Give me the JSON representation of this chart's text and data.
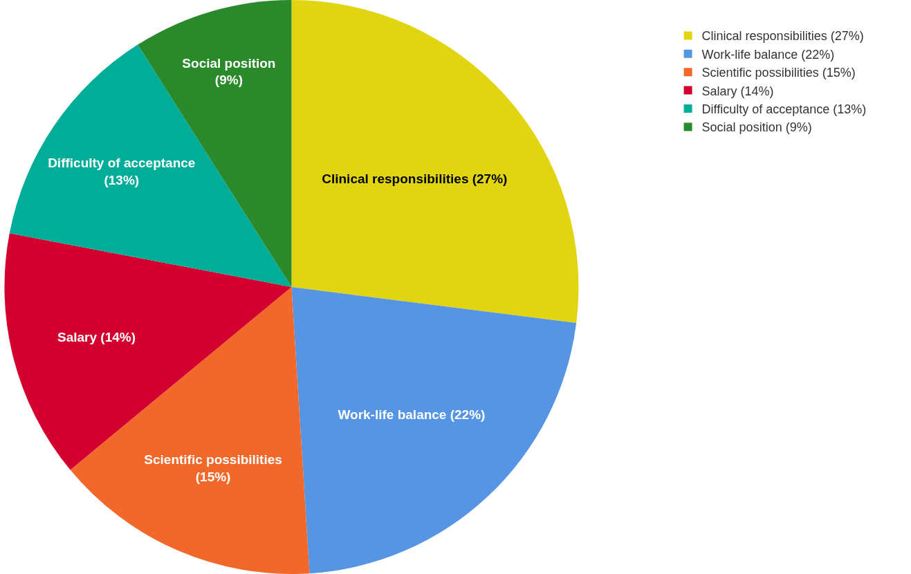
{
  "chart_data": {
    "type": "pie",
    "categories": [
      "Clinical responsibilities (27%)",
      "Work-life balance (22%)",
      "Scientific possibilities (15%)",
      "Salary (14%)",
      "Difficulty of acceptance (13%)",
      "Social position (9%)"
    ],
    "values": [
      27,
      22,
      15,
      14,
      13,
      9
    ],
    "colors": [
      "#e1d512",
      "#5595e3",
      "#f2682a",
      "#d3002f",
      "#00ad99",
      "#2a8a2b"
    ],
    "value_labels": [
      "Clinical responsibilities (27%)",
      "Work-life balance (22%)",
      "Scientific possibilities\n(15%)",
      "Salary (14%)",
      "Difficulty of acceptance\n(13%)",
      "Social position\n(9%)"
    ],
    "legend": "top right"
  }
}
